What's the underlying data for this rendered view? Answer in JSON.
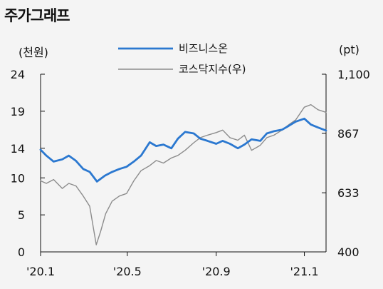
{
  "title": "주가그래프",
  "chart_data": {
    "type": "line",
    "y_left_unit": "(천원)",
    "y_right_unit": "(pt)",
    "y_left_ticks": [
      0,
      5,
      10,
      14,
      19,
      24
    ],
    "y_left_tick_labels": [
      "0",
      "5",
      "10",
      "14",
      "19",
      "24"
    ],
    "y_left_range": [
      0,
      24
    ],
    "y_right_ticks": [
      400,
      633,
      867,
      1100
    ],
    "y_right_tick_labels": [
      "400",
      "633",
      "867",
      "1,100"
    ],
    "y_right_range": [
      400,
      1100
    ],
    "x_range": [
      "2020-01-02",
      "2021-01-31"
    ],
    "x_ticks": [
      "2020-01-02",
      "2020-05-01",
      "2020-09-01",
      "2021-01-01"
    ],
    "x_tick_labels": [
      "'20.1",
      "'20.5",
      "'20.9",
      "'21.1"
    ],
    "grid": false,
    "legend_position": "top-center",
    "series": [
      {
        "name": "비즈니스온",
        "axis": "left",
        "color": "#2b78d0",
        "points": [
          [
            "2020-01-02",
            13.8
          ],
          [
            "2020-01-10",
            13.0
          ],
          [
            "2020-01-20",
            12.2
          ],
          [
            "2020-02-01",
            12.5
          ],
          [
            "2020-02-10",
            13.0
          ],
          [
            "2020-02-20",
            12.3
          ],
          [
            "2020-03-01",
            11.2
          ],
          [
            "2020-03-10",
            10.8
          ],
          [
            "2020-03-20",
            9.5
          ],
          [
            "2020-03-31",
            10.3
          ],
          [
            "2020-04-10",
            10.8
          ],
          [
            "2020-04-20",
            11.2
          ],
          [
            "2020-04-30",
            11.5
          ],
          [
            "2020-05-10",
            12.2
          ],
          [
            "2020-05-20",
            13.0
          ],
          [
            "2020-06-01",
            14.8
          ],
          [
            "2020-06-10",
            14.3
          ],
          [
            "2020-06-20",
            14.5
          ],
          [
            "2020-07-01",
            14.0
          ],
          [
            "2020-07-10",
            15.3
          ],
          [
            "2020-07-20",
            16.2
          ],
          [
            "2020-08-01",
            16.0
          ],
          [
            "2020-08-10",
            15.3
          ],
          [
            "2020-08-20",
            15.0
          ],
          [
            "2020-09-01",
            14.6
          ],
          [
            "2020-09-10",
            15.0
          ],
          [
            "2020-09-20",
            14.6
          ],
          [
            "2020-10-01",
            14.0
          ],
          [
            "2020-10-10",
            14.5
          ],
          [
            "2020-10-20",
            15.2
          ],
          [
            "2020-11-01",
            15.0
          ],
          [
            "2020-11-10",
            16.0
          ],
          [
            "2020-11-20",
            16.3
          ],
          [
            "2020-12-01",
            16.5
          ],
          [
            "2020-12-10",
            17.0
          ],
          [
            "2020-12-20",
            17.6
          ],
          [
            "2021-01-01",
            18.0
          ],
          [
            "2021-01-10",
            17.2
          ],
          [
            "2021-01-20",
            16.8
          ],
          [
            "2021-01-31",
            16.4
          ]
        ]
      },
      {
        "name": "코스닥지수(우)",
        "axis": "right",
        "color": "#8c8c8c",
        "points": [
          [
            "2020-01-02",
            680
          ],
          [
            "2020-01-10",
            670
          ],
          [
            "2020-01-20",
            685
          ],
          [
            "2020-02-01",
            650
          ],
          [
            "2020-02-10",
            670
          ],
          [
            "2020-02-20",
            660
          ],
          [
            "2020-03-01",
            620
          ],
          [
            "2020-03-10",
            580
          ],
          [
            "2020-03-19",
            428
          ],
          [
            "2020-03-25",
            480
          ],
          [
            "2020-04-01",
            550
          ],
          [
            "2020-04-10",
            600
          ],
          [
            "2020-04-20",
            620
          ],
          [
            "2020-04-30",
            630
          ],
          [
            "2020-05-10",
            680
          ],
          [
            "2020-05-20",
            720
          ],
          [
            "2020-06-01",
            740
          ],
          [
            "2020-06-10",
            760
          ],
          [
            "2020-06-20",
            750
          ],
          [
            "2020-07-01",
            770
          ],
          [
            "2020-07-10",
            780
          ],
          [
            "2020-07-20",
            800
          ],
          [
            "2020-08-01",
            830
          ],
          [
            "2020-08-10",
            850
          ],
          [
            "2020-08-20",
            860
          ],
          [
            "2020-09-01",
            870
          ],
          [
            "2020-09-10",
            880
          ],
          [
            "2020-09-20",
            850
          ],
          [
            "2020-10-01",
            840
          ],
          [
            "2020-10-10",
            860
          ],
          [
            "2020-10-20",
            800
          ],
          [
            "2020-11-01",
            820
          ],
          [
            "2020-11-10",
            850
          ],
          [
            "2020-11-20",
            860
          ],
          [
            "2020-12-01",
            880
          ],
          [
            "2020-12-10",
            900
          ],
          [
            "2020-12-20",
            920
          ],
          [
            "2021-01-01",
            970
          ],
          [
            "2021-01-10",
            980
          ],
          [
            "2021-01-20",
            960
          ],
          [
            "2021-01-31",
            950
          ]
        ]
      }
    ]
  }
}
